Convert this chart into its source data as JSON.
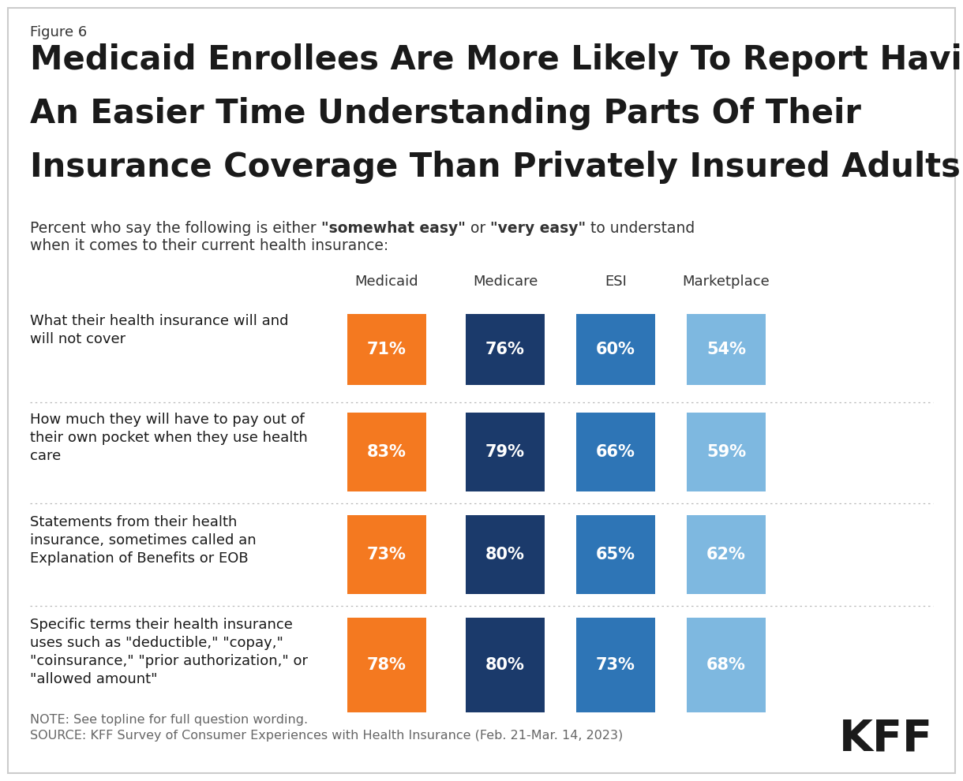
{
  "figure_label": "Figure 6",
  "title_line1": "Medicaid Enrollees Are More Likely To Report Having",
  "title_line2": "An Easier Time Understanding Parts Of Their",
  "title_line3": "Insurance Coverage Than Privately Insured Adults",
  "subtitle_plain": "Percent who say the following is either ",
  "subtitle_bold1": "\"somewhat easy\"",
  "subtitle_mid": " or ",
  "subtitle_bold2": "\"very easy\"",
  "subtitle_end": " to understand",
  "subtitle_line2": "when it comes to their current health insurance:",
  "columns": [
    "Medicaid",
    "Medicare",
    "ESI",
    "Marketplace"
  ],
  "rows": [
    {
      "label": "What their health insurance will and\nwill not cover",
      "values": [
        71,
        76,
        60,
        54
      ],
      "n_label_lines": 2
    },
    {
      "label": "How much they will have to pay out of\ntheir own pocket when they use health\ncare",
      "values": [
        83,
        79,
        66,
        59
      ],
      "n_label_lines": 3
    },
    {
      "label": "Statements from their health\ninsurance, sometimes called an\nExplanation of Benefits or EOB",
      "values": [
        73,
        80,
        65,
        62
      ],
      "n_label_lines": 3
    },
    {
      "label": "Specific terms their health insurance\nuses such as \"deductible,\" \"copay,\"\n\"coinsurance,\" \"prior authorization,\" or\n\"allowed amount\"",
      "values": [
        78,
        80,
        73,
        68
      ],
      "n_label_lines": 4
    }
  ],
  "colors": [
    "#F47920",
    "#1B3A6B",
    "#2E75B6",
    "#7EB8E0"
  ],
  "background_color": "#FFFFFF",
  "note": "NOTE: See topline for full question wording.",
  "source": "SOURCE: KFF Survey of Consumer Experiences with Health Insurance (Feb. 21-Mar. 14, 2023)",
  "kff_logo": "KFF"
}
